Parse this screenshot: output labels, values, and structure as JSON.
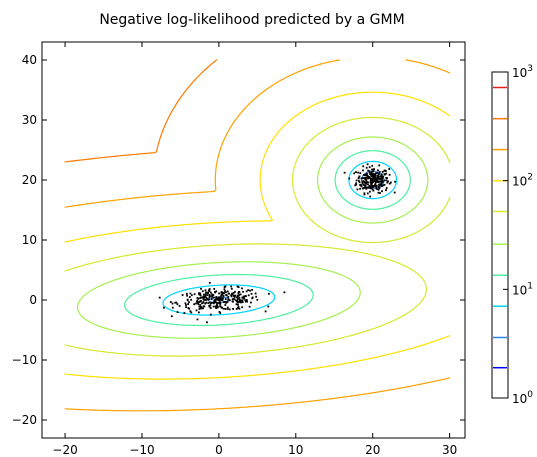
{
  "chart_data": {
    "type": "contour",
    "title": "Negative log-likelihood predicted by a GMM",
    "xlabel": "",
    "ylabel": "",
    "xlim": [
      -23,
      32
    ],
    "ylim": [
      -23,
      43
    ],
    "xticks": [
      -20,
      -10,
      0,
      10,
      20,
      30
    ],
    "yticks": [
      -20,
      -10,
      0,
      10,
      20,
      30,
      40
    ],
    "grid": false,
    "colorbar": {
      "scale": "log",
      "range": [
        1,
        1000
      ],
      "tick_labels": [
        {
          "base": "10",
          "exp": "0",
          "value": 1
        },
        {
          "base": "10",
          "exp": "1",
          "value": 10
        },
        {
          "base": "10",
          "exp": "2",
          "value": 100
        },
        {
          "base": "10",
          "exp": "3",
          "value": 1000
        }
      ],
      "levels": [
        {
          "value": 1.9,
          "color": "#0000ff"
        },
        {
          "value": 3.6,
          "color": "#2e86e8"
        },
        {
          "value": 7.0,
          "color": "#00d4ff"
        },
        {
          "value": 13.5,
          "color": "#4df0a0"
        },
        {
          "value": 26,
          "color": "#a6f050"
        },
        {
          "value": 52,
          "color": "#d8e830"
        },
        {
          "value": 100,
          "color": "#ffe000"
        },
        {
          "value": 193,
          "color": "#ffa000"
        },
        {
          "value": 372,
          "color": "#ff7a00"
        },
        {
          "value": 720,
          "color": "#e8201c"
        }
      ]
    },
    "clusters": [
      {
        "center": [
          20,
          20
        ],
        "spread": "round",
        "approx_points": 250
      },
      {
        "center": [
          0,
          0
        ],
        "spread": "elongated along x, slight upward tilt",
        "approx_points": 300
      }
    ]
  }
}
